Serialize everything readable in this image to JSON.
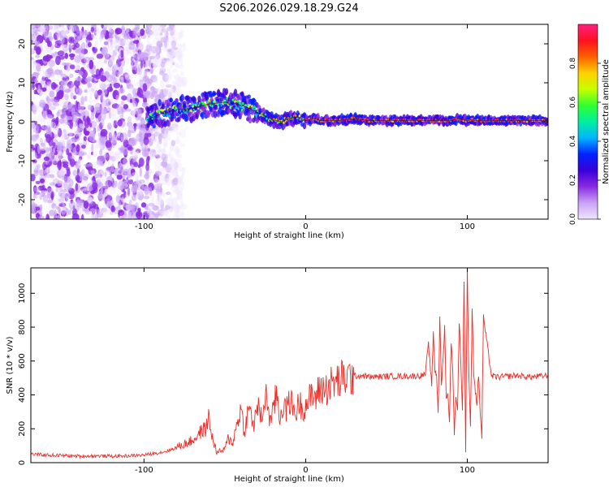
{
  "title": "S206.2026.029.18.29.G24",
  "colors": {
    "snr_line": "#e8302a",
    "ridge_line": "#111111",
    "colormap": [
      "#f0e6ff",
      "#c9a3f5",
      "#8a2be2",
      "#3a00d8",
      "#0022ff",
      "#00b4ff",
      "#00f0a0",
      "#30ff30",
      "#c8ff00",
      "#ffd000",
      "#ff6000",
      "#ff1020",
      "#ff2080"
    ]
  },
  "chart_data": [
    {
      "type": "heatmap",
      "panel": "spectrogram",
      "xlabel": "Height of straight line (km)",
      "ylabel": "Frequency (Hz)",
      "xlim": [
        -170,
        150
      ],
      "ylim": [
        -25,
        25
      ],
      "xticks": [
        -100,
        0,
        100
      ],
      "xtick_labels": [
        "-100",
        "0",
        "100"
      ],
      "yticks": [
        -20,
        -10,
        0,
        10,
        20
      ],
      "ytick_labels": [
        "-20",
        "-10",
        "0",
        "10",
        "20"
      ],
      "noise_region_km": [
        -170,
        -78
      ],
      "ridge": {
        "x": [
          -98,
          -90,
          -80,
          -70,
          -60,
          -50,
          -42,
          -35,
          -28,
          -20,
          -15,
          -10,
          -5,
          0,
          5,
          10,
          20,
          30,
          40,
          50,
          60,
          70,
          80,
          90,
          95,
          100,
          102,
          105,
          110,
          120,
          130,
          140,
          150
        ],
        "freq": [
          0.5,
          2,
          3,
          3.5,
          4.5,
          5,
          4.5,
          3.5,
          2,
          0.5,
          0,
          0.8,
          1.2,
          0.3,
          0.8,
          0.3,
          0.3,
          0.8,
          0.3,
          0.3,
          0.3,
          0.3,
          0.3,
          0.3,
          0.8,
          0.2,
          0.6,
          0.3,
          0.3,
          0.3,
          0.3,
          0.3,
          0.3
        ]
      },
      "colorbar": {
        "label": "Normalized spectral amplitude",
        "range": [
          0,
          1
        ],
        "ticks": [
          0,
          0.2,
          0.4,
          0.6,
          0.8
        ],
        "tick_labels": [
          "0.0",
          "0.2",
          "0.4",
          "0.6",
          "0.8"
        ]
      }
    },
    {
      "type": "line",
      "panel": "snr",
      "xlabel": "Height of straight line (km)",
      "ylabel": "SNR (10 * v/v)",
      "xlim": [
        -170,
        150
      ],
      "ylim": [
        0,
        1150
      ],
      "xticks": [
        -100,
        0,
        100
      ],
      "xtick_labels": [
        "-100",
        "0",
        "100"
      ],
      "yticks": [
        0,
        200,
        400,
        600,
        800,
        1000
      ],
      "ytick_labels": [
        "0",
        "200",
        "400",
        "600",
        "800",
        "1000"
      ],
      "series": [
        {
          "name": "SNR",
          "x": [
            -170,
            -160,
            -150,
            -140,
            -130,
            -120,
            -110,
            -100,
            -90,
            -85,
            -80,
            -75,
            -70,
            -65,
            -62,
            -60,
            -58,
            -55,
            -52,
            -50,
            -48,
            -45,
            -42,
            -40,
            -38,
            -36,
            -34,
            -32,
            -30,
            -28,
            -26,
            -24,
            -22,
            -20,
            -18,
            -16,
            -14,
            -12,
            -10,
            -8,
            -6,
            -4,
            -2,
            0,
            2,
            4,
            6,
            8,
            10,
            12,
            15,
            18,
            20,
            25,
            30,
            35,
            40,
            50,
            60,
            70,
            74,
            76,
            78,
            79,
            80,
            81,
            82,
            83,
            84,
            85,
            86,
            87,
            88,
            89,
            90,
            91,
            92,
            93,
            94,
            95,
            96,
            97,
            98,
            99,
            100,
            101,
            102,
            103,
            104,
            105,
            106,
            107,
            108,
            109,
            110,
            115,
            120,
            130,
            140,
            150
          ],
          "values": [
            50,
            45,
            42,
            38,
            40,
            38,
            40,
            45,
            60,
            70,
            90,
            110,
            130,
            180,
            200,
            260,
            160,
            60,
            70,
            80,
            140,
            120,
            250,
            320,
            180,
            280,
            310,
            200,
            360,
            250,
            330,
            400,
            240,
            300,
            420,
            260,
            350,
            300,
            380,
            330,
            290,
            360,
            320,
            340,
            370,
            390,
            380,
            420,
            440,
            430,
            460,
            470,
            480,
            500,
            510,
            515,
            505,
            510,
            510,
            512,
            520,
            700,
            450,
            780,
            540,
            520,
            300,
            850,
            460,
            600,
            800,
            380,
            400,
            250,
            720,
            540,
            180,
            400,
            300,
            840,
            600,
            300,
            1080,
            70,
            1150,
            520,
            200,
            920,
            530,
            420,
            350,
            520,
            300,
            150,
            860,
            510,
            505,
            515,
            505,
            515
          ]
        }
      ]
    }
  ]
}
